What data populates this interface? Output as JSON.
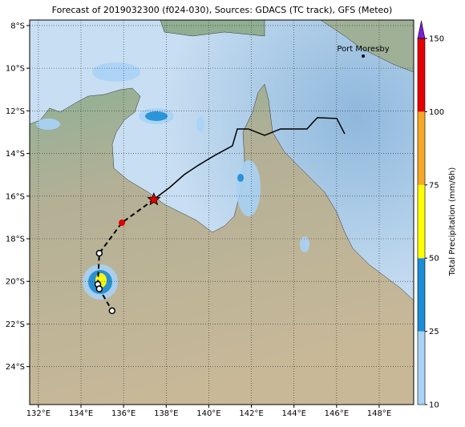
{
  "title": "Forecast of 2019032300 (f024-030), Sources: GDACS (TC track), GFS (Meteo)",
  "map": {
    "xlim": [
      131.59,
      149.62
    ],
    "ylim": [
      -25.78,
      -7.74
    ],
    "grid": true,
    "xticks": [
      {
        "value": 132,
        "label": "132°E"
      },
      {
        "value": 134,
        "label": "134°E"
      },
      {
        "value": 136,
        "label": "136°E"
      },
      {
        "value": 138,
        "label": "138°E"
      },
      {
        "value": 140,
        "label": "140°E"
      },
      {
        "value": 142,
        "label": "142°E"
      },
      {
        "value": 144,
        "label": "144°E"
      },
      {
        "value": 146,
        "label": "146°E"
      },
      {
        "value": 148,
        "label": "148°E"
      }
    ],
    "yticks": [
      {
        "value": -8,
        "label": "8°S"
      },
      {
        "value": -10,
        "label": "10°S"
      },
      {
        "value": -12,
        "label": "12°S"
      },
      {
        "value": -14,
        "label": "14°S"
      },
      {
        "value": -16,
        "label": "16°S"
      },
      {
        "value": -18,
        "label": "18°S"
      },
      {
        "value": -20,
        "label": "20°S"
      },
      {
        "value": -22,
        "label": "22°S"
      },
      {
        "value": -24,
        "label": "24°S"
      }
    ]
  },
  "place": {
    "name": "Port Moresby",
    "lon": 147.25,
    "lat": -9.43
  },
  "track": {
    "observed": {
      "color": "#000000",
      "lon": [
        146.38,
        146.01,
        145.1,
        144.88,
        144.61,
        143.37,
        142.62,
        141.86,
        141.34,
        141.11,
        140.28,
        139.53,
        138.85,
        138.17,
        137.46
      ],
      "lat": [
        -13.08,
        -12.36,
        -12.32,
        -12.55,
        -12.85,
        -12.85,
        -13.15,
        -12.85,
        -12.85,
        -13.64,
        -14.09,
        -14.54,
        -14.99,
        -15.59,
        -16.12
      ]
    },
    "forecast": {
      "color": "#000000",
      "lon": [
        137.42,
        135.92,
        134.86,
        134.79,
        134.86,
        135.46
      ],
      "lat": [
        -16.16,
        -17.25,
        -18.68,
        -20.14,
        -20.35,
        -21.38
      ]
    }
  },
  "colorbar": {
    "label": "Total Precipitation (mm/6h)",
    "bounds": [
      10,
      25,
      50,
      75,
      100,
      150
    ],
    "colors": [
      "#a9d3f7",
      "#1b8ed8",
      "#ffff00",
      "#f7a823",
      "#e60000"
    ],
    "extend_color": "#7a1fd6"
  }
}
